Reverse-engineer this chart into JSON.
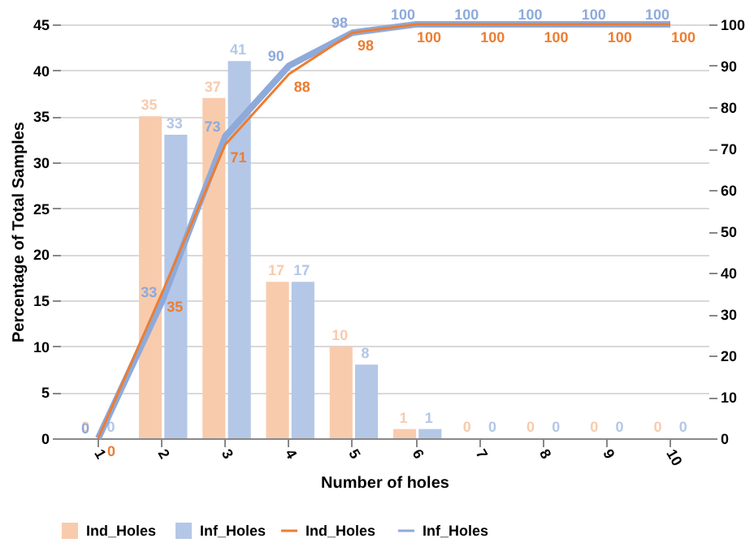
{
  "chart_data": {
    "type": "bar",
    "categories": [
      "1",
      "2",
      "3",
      "4",
      "5",
      "6",
      "7",
      "8",
      "9",
      "10"
    ],
    "xlabel": "Number of holes",
    "ylabel": "Percentage of Total Samples",
    "ylim": [
      0,
      45
    ],
    "yticks": [
      0,
      5,
      10,
      15,
      20,
      25,
      30,
      35,
      40,
      45
    ],
    "y2lim": [
      0,
      100
    ],
    "y2ticks": [
      0,
      10,
      20,
      30,
      40,
      50,
      60,
      70,
      80,
      90,
      100
    ],
    "grid": "y",
    "legend": "bottom",
    "data_labels": true,
    "marker": "none",
    "line_style": "solid",
    "series": [
      {
        "name": "Ind_Holes",
        "color": "#f8cbad",
        "values": [
          0,
          35,
          37,
          17,
          10,
          1,
          0,
          0,
          0,
          0
        ]
      },
      {
        "name": "Inf_Holes",
        "color": "#b4c7e7",
        "values": [
          0,
          33,
          41,
          17,
          8,
          1,
          0,
          0,
          0,
          0
        ]
      },
      {
        "name": "Ind_Holes",
        "type": "line",
        "axis": "y2",
        "color": "#ed7d31",
        "values": [
          0,
          35,
          71,
          88,
          98,
          100,
          100,
          100,
          100,
          100
        ]
      },
      {
        "name": "Inf_Holes",
        "type": "line",
        "axis": "y2",
        "color": "#8eaadb",
        "values": [
          0,
          33,
          73,
          90,
          98,
          100,
          100,
          100,
          100,
          100
        ]
      }
    ]
  }
}
